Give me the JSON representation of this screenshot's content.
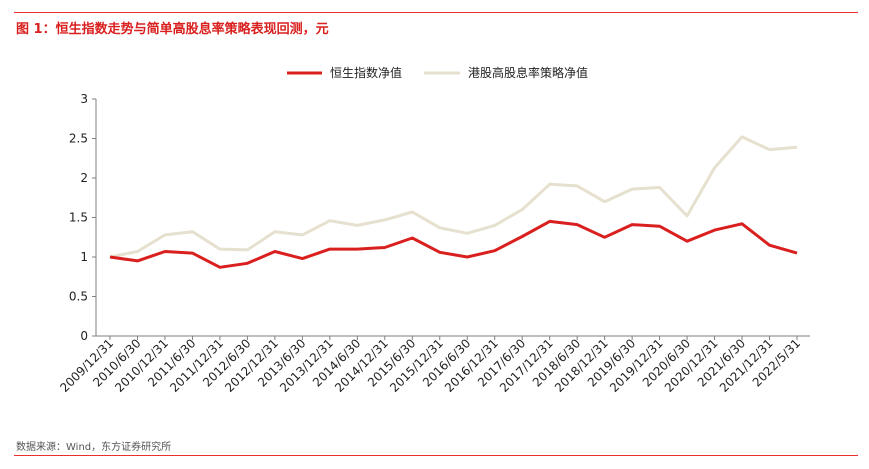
{
  "figure": {
    "title": "图 1：恒生指数走势与简单高股息率策略表现回测，元",
    "source": "数据来源：Wind，东方证券研究所"
  },
  "colors": {
    "accent": "#d9201f",
    "series_hsi": "#d9201f",
    "series_dividend": "#e6e0cf"
  },
  "chart_data": {
    "type": "line",
    "title": "",
    "xlabel": "",
    "ylabel": "",
    "ylim": [
      0,
      3
    ],
    "yticks": [
      "0",
      "0.5",
      "1",
      "1.5",
      "2",
      "2.5",
      "3"
    ],
    "grid": false,
    "legend_position": "top",
    "x_labels_shown": [
      "2009/12/31",
      "2010/6/30",
      "2010/12/31",
      "2011/6/30",
      "2011/12/31",
      "2012/6/30",
      "2012/12/31",
      "2013/6/30",
      "2013/12/31",
      "2014/6/30",
      "2014/12/31",
      "2015/6/30",
      "2015/12/31",
      "2016/6/30",
      "2016/12/31",
      "2017/6/30",
      "2017/12/31",
      "2018/6/30",
      "2018/12/31",
      "2019/6/30",
      "2019/12/31",
      "2020/6/30",
      "2020/12/31",
      "2021/6/30",
      "2021/12/31",
      "2022/5/31"
    ],
    "series": [
      {
        "name": "恒生指数净值",
        "values": [
          1.0,
          0.95,
          1.07,
          1.05,
          0.87,
          0.92,
          1.07,
          0.98,
          1.1,
          1.1,
          1.12,
          1.24,
          1.06,
          1.0,
          1.08,
          1.26,
          1.45,
          1.41,
          1.25,
          1.41,
          1.39,
          1.2,
          1.34,
          1.42,
          1.15,
          1.05
        ]
      },
      {
        "name": "港股高股息率策略净值",
        "values": [
          1.0,
          1.07,
          1.28,
          1.32,
          1.1,
          1.09,
          1.32,
          1.28,
          1.46,
          1.4,
          1.47,
          1.57,
          1.37,
          1.3,
          1.4,
          1.6,
          1.92,
          1.9,
          1.7,
          1.86,
          1.88,
          1.52,
          2.13,
          2.52,
          2.36,
          2.39
        ]
      }
    ]
  }
}
